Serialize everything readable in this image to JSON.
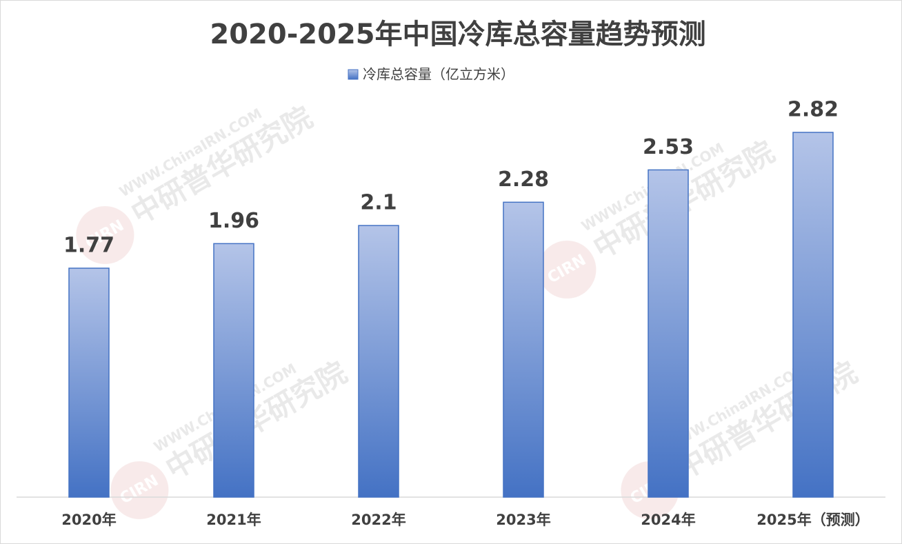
{
  "chart_data": {
    "type": "bar",
    "title": "2020-2025年中国冷库总容量趋势预测",
    "categories": [
      "2020年",
      "2021年",
      "2022年",
      "2023年",
      "2024年",
      "2025年（预测）"
    ],
    "series": [
      {
        "name": "冷库总容量（亿立方米）",
        "color": "#4472c4",
        "values": [
          1.77,
          1.96,
          2.1,
          2.28,
          2.53,
          2.82
        ]
      }
    ],
    "watermark": {
      "site": "WWW.ChinaIRN.COM",
      "org": "中研普华研究院",
      "logo": "CIRN"
    }
  }
}
